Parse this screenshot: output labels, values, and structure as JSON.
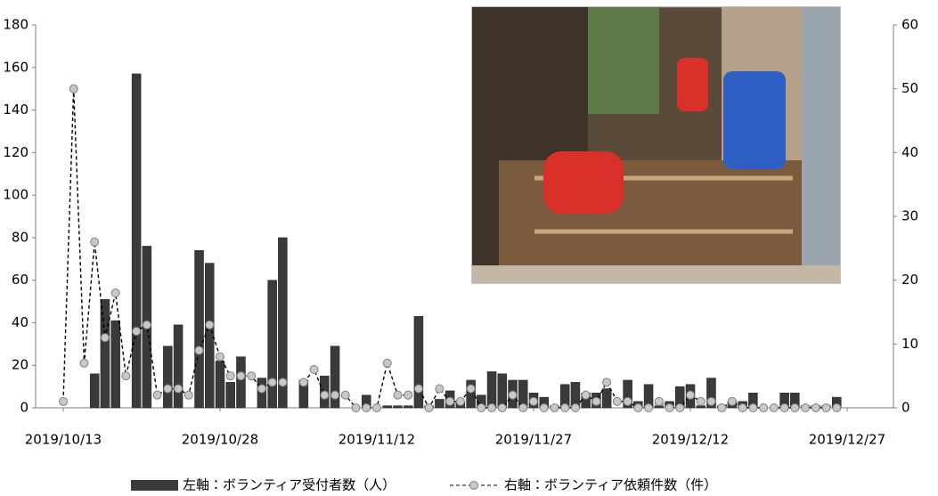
{
  "chart_data": {
    "type": "bar_line",
    "x": [
      "2019/10/13",
      "2019/10/14",
      "2019/10/15",
      "2019/10/16",
      "2019/10/17",
      "2019/10/18",
      "2019/10/19",
      "2019/10/20",
      "2019/10/21",
      "2019/10/22",
      "2019/10/23",
      "2019/10/24",
      "2019/10/25",
      "2019/10/26",
      "2019/10/27",
      "2019/10/28",
      "2019/10/29",
      "2019/10/30",
      "2019/10/31",
      "2019/11/01",
      "2019/11/02",
      "2019/11/03",
      "2019/11/04",
      "2019/11/05",
      "2019/11/06",
      "2019/11/07",
      "2019/11/08",
      "2019/11/09",
      "2019/11/10",
      "2019/11/11",
      "2019/11/12",
      "2019/11/13",
      "2019/11/14",
      "2019/11/15",
      "2019/11/16",
      "2019/11/17",
      "2019/11/18",
      "2019/11/19",
      "2019/11/20",
      "2019/11/21",
      "2019/11/22",
      "2019/11/23",
      "2019/11/24",
      "2019/11/25",
      "2019/11/26",
      "2019/11/27",
      "2019/11/28",
      "2019/11/29",
      "2019/11/30",
      "2019/12/01",
      "2019/12/02",
      "2019/12/03",
      "2019/12/04",
      "2019/12/05",
      "2019/12/06",
      "2019/12/07",
      "2019/12/08",
      "2019/12/09",
      "2019/12/10",
      "2019/12/11",
      "2019/12/12",
      "2019/12/13",
      "2019/12/14",
      "2019/12/15",
      "2019/12/16",
      "2019/12/17",
      "2019/12/18",
      "2019/12/19",
      "2019/12/20",
      "2019/12/21",
      "2019/12/22",
      "2019/12/23",
      "2019/12/24",
      "2019/12/25",
      "2019/12/26"
    ],
    "series": [
      {
        "name": "左軸：ボランティア受付者数（人）",
        "type": "bar",
        "color": "#3a3a3a",
        "axis": "y",
        "values": [
          0,
          0,
          0,
          16,
          51,
          41,
          0,
          157,
          76,
          0,
          29,
          39,
          0,
          74,
          68,
          22,
          12,
          24,
          0,
          14,
          60,
          80,
          0,
          13,
          0,
          15,
          29,
          0,
          0,
          6,
          0,
          1,
          1,
          1,
          43,
          1,
          4,
          8,
          3,
          13,
          6,
          17,
          16,
          13,
          13,
          7,
          5,
          1,
          11,
          12,
          7,
          7,
          9,
          0,
          13,
          3,
          11,
          1,
          3,
          10,
          11,
          1,
          14,
          1,
          3,
          3,
          7,
          0,
          0,
          7,
          7,
          1,
          1,
          1,
          5
        ]
      },
      {
        "name": "右軸：ボランティア依頼件数（件）",
        "type": "line",
        "color": "#000000",
        "marker_color": "#c8c8c8",
        "axis": "y2",
        "values": [
          1,
          50,
          7,
          26,
          11,
          18,
          5,
          12,
          13,
          2,
          3,
          3,
          2,
          9,
          13,
          8,
          5,
          5,
          5,
          3,
          4,
          4,
          null,
          4,
          6,
          2,
          2,
          2,
          0,
          0,
          0,
          7,
          2,
          2,
          3,
          0,
          3,
          1,
          1,
          3,
          0,
          0,
          0,
          2,
          0,
          1,
          0,
          0,
          0,
          0,
          2,
          1,
          4,
          1,
          1,
          0,
          0,
          1,
          0,
          0,
          2,
          1,
          1,
          0,
          1,
          0,
          0,
          0,
          0,
          0,
          0,
          0,
          0,
          0,
          0
        ]
      }
    ],
    "xlim": [
      "2019/10/13",
      "2019/12/27"
    ],
    "xticks": [
      "2019/10/13",
      "2019/10/28",
      "2019/11/12",
      "2019/11/27",
      "2019/12/12",
      "2019/12/27"
    ],
    "ylim": [
      0,
      180
    ],
    "yticks": [
      0,
      20,
      40,
      60,
      80,
      100,
      120,
      140,
      160,
      180
    ],
    "y2lim": [
      0,
      60
    ],
    "y2ticks": [
      0,
      10,
      20,
      30,
      40,
      50,
      60
    ],
    "grid": false,
    "legend": "bottom"
  }
}
